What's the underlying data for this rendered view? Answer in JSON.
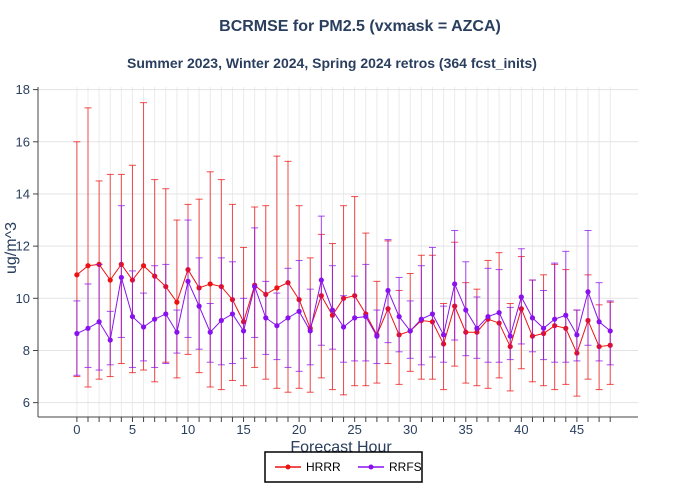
{
  "chart_data": {
    "type": "line",
    "title": "BCRMSE for PM2.5 (vxmask = AZCA)",
    "subtitle": "Summer 2023, Winter 2024, Spring 2024 retros (364 fcst_inits)",
    "xlabel": "Forecast Hour",
    "ylabel": "ug/m^3",
    "xlim": [
      -3.5,
      50.5
    ],
    "ylim": [
      5.45,
      18.1
    ],
    "xticks": [
      0,
      5,
      10,
      15,
      20,
      25,
      30,
      35,
      40,
      45
    ],
    "yticks": [
      6,
      8,
      10,
      12,
      14,
      16,
      18
    ],
    "grid": true,
    "legend_position": "bottom-center",
    "x": [
      0,
      1,
      2,
      3,
      4,
      5,
      6,
      7,
      8,
      9,
      10,
      11,
      12,
      13,
      14,
      15,
      16,
      17,
      18,
      19,
      20,
      21,
      22,
      23,
      24,
      25,
      26,
      27,
      28,
      29,
      30,
      31,
      32,
      33,
      34,
      35,
      36,
      37,
      38,
      39,
      40,
      41,
      42,
      43,
      44,
      45,
      46,
      47,
      48
    ],
    "series": [
      {
        "name": "HRRR",
        "color": "#ee1111",
        "values": [
          10.9,
          11.25,
          11.3,
          10.7,
          11.3,
          10.7,
          11.25,
          10.85,
          10.45,
          9.85,
          11.1,
          10.4,
          10.55,
          10.45,
          9.95,
          9.1,
          10.5,
          10.15,
          10.4,
          10.6,
          9.95,
          8.85,
          10.1,
          9.35,
          10.0,
          10.1,
          9.4,
          8.6,
          9.6,
          8.6,
          8.75,
          9.15,
          9.1,
          8.25,
          9.7,
          8.7,
          8.7,
          9.2,
          9.05,
          8.15,
          9.6,
          8.55,
          8.65,
          8.95,
          8.85,
          7.9,
          9.15,
          8.15,
          8.2
        ],
        "upper": [
          16.0,
          17.3,
          14.5,
          14.75,
          14.75,
          15.1,
          17.5,
          14.55,
          14.2,
          13.0,
          13.6,
          13.8,
          14.85,
          14.55,
          13.6,
          11.95,
          13.5,
          13.55,
          15.45,
          15.25,
          13.55,
          11.55,
          12.45,
          12.1,
          13.55,
          13.9,
          12.5,
          10.65,
          12.2,
          10.3,
          10.95,
          11.65,
          11.65,
          9.8,
          12.15,
          10.6,
          10.35,
          11.45,
          11.75,
          9.8,
          11.6,
          10.7,
          10.9,
          11.3,
          11.1,
          9.55,
          10.9,
          9.75,
          9.85
        ],
        "lower": [
          7.0,
          6.6,
          6.9,
          7.0,
          7.5,
          7.15,
          7.25,
          6.8,
          7.55,
          6.95,
          7.85,
          7.15,
          6.6,
          6.5,
          6.85,
          6.65,
          7.35,
          6.9,
          6.55,
          6.4,
          6.55,
          6.4,
          6.95,
          6.5,
          6.3,
          6.65,
          6.65,
          6.75,
          7.5,
          6.7,
          7.2,
          6.9,
          6.9,
          6.5,
          7.4,
          6.75,
          6.65,
          6.55,
          6.95,
          6.45,
          7.3,
          6.8,
          6.65,
          6.5,
          6.7,
          6.25,
          6.9,
          6.5,
          6.7
        ]
      },
      {
        "name": "RRFS",
        "color": "#8811ee",
        "values": [
          8.65,
          8.85,
          9.1,
          8.4,
          10.8,
          9.3,
          8.9,
          9.2,
          9.4,
          8.7,
          10.65,
          9.7,
          8.7,
          9.15,
          9.4,
          8.75,
          10.45,
          9.25,
          8.95,
          9.25,
          9.5,
          8.75,
          10.7,
          9.55,
          8.9,
          9.25,
          9.3,
          8.55,
          10.3,
          9.3,
          8.75,
          9.2,
          9.4,
          8.6,
          10.55,
          9.55,
          8.85,
          9.3,
          9.45,
          8.55,
          10.05,
          9.25,
          8.85,
          9.2,
          9.35,
          8.6,
          10.25,
          9.1,
          8.75
        ],
        "upper": [
          9.9,
          10.55,
          11.3,
          9.5,
          13.55,
          11.05,
          10.2,
          11.25,
          11.3,
          9.55,
          13.0,
          11.55,
          9.8,
          11.55,
          11.4,
          10.0,
          12.7,
          10.65,
          10.2,
          11.15,
          11.45,
          10.35,
          13.15,
          11.25,
          10.1,
          10.85,
          11.3,
          9.55,
          12.25,
          10.8,
          9.9,
          11.25,
          11.95,
          9.7,
          12.6,
          11.4,
          10.05,
          11.15,
          11.1,
          9.65,
          11.9,
          10.7,
          10.3,
          11.35,
          11.8,
          9.55,
          12.6,
          10.6,
          9.9
        ],
        "lower": [
          7.05,
          7.35,
          7.25,
          7.45,
          8.5,
          7.35,
          7.6,
          7.35,
          7.5,
          7.9,
          8.5,
          8.05,
          7.55,
          7.45,
          7.5,
          7.7,
          8.5,
          7.85,
          7.65,
          7.35,
          7.2,
          7.45,
          8.2,
          8.05,
          7.55,
          7.6,
          7.6,
          7.5,
          8.3,
          7.95,
          7.7,
          7.45,
          7.75,
          7.55,
          8.4,
          7.8,
          7.7,
          7.55,
          7.55,
          7.65,
          8.25,
          7.95,
          7.65,
          7.55,
          7.55,
          7.6,
          8.2,
          7.6,
          7.45
        ]
      }
    ]
  }
}
